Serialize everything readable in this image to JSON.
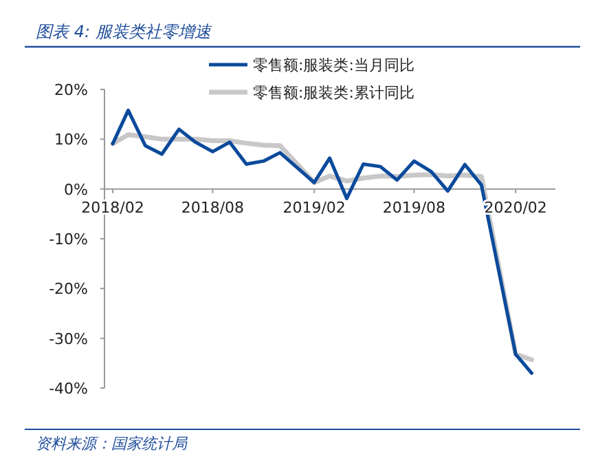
{
  "chart_data": {
    "type": "line",
    "title": "图表 4:  服装类社零增速",
    "x": [
      "2018-02",
      "2018-03",
      "2018-04",
      "2018-05",
      "2018-06",
      "2018-07",
      "2018-08",
      "2018-09",
      "2018-10",
      "2018-11",
      "2018-12",
      "2019-02",
      "2019-03",
      "2019-04",
      "2019-05",
      "2019-06",
      "2019-07",
      "2019-08",
      "2019-09",
      "2019-10",
      "2019-11",
      "2019-12",
      "2020-02",
      "2020-03"
    ],
    "series": [
      {
        "name": "零售额:服装类:累计同比",
        "color": "#c8c8c8",
        "values": [
          9.1,
          10.9,
          10.5,
          10.0,
          10.0,
          10.0,
          9.7,
          9.7,
          9.2,
          8.8,
          8.7,
          1.3,
          2.6,
          1.6,
          2.2,
          2.6,
          2.5,
          2.8,
          2.9,
          2.6,
          2.8,
          2.5,
          -33.2,
          -34.3
        ]
      },
      {
        "name": "零售额:服装类:当月同比",
        "color": "#0b4a9c",
        "values": [
          9.1,
          15.8,
          8.7,
          7.0,
          12.0,
          9.4,
          7.5,
          9.4,
          5.0,
          5.6,
          7.3,
          1.3,
          6.2,
          -1.9,
          5.0,
          4.5,
          1.8,
          5.6,
          3.5,
          -0.4,
          4.9,
          0.8,
          -33.2,
          -37.0
        ]
      }
    ],
    "xlim": [
      "2018-01-17",
      "2020-04-13"
    ],
    "xticks": [
      {
        "value": "2018-02",
        "label": "2018/02"
      },
      {
        "value": "2018-08",
        "label": "2018/08"
      },
      {
        "value": "2019-02",
        "label": "2019/02"
      },
      {
        "value": "2019-08",
        "label": "2019/08"
      },
      {
        "value": "2020-02",
        "label": "2020/02"
      }
    ],
    "ylim": [
      -40,
      20
    ],
    "yticks": [
      {
        "value": 20,
        "label": "20%"
      },
      {
        "value": 10,
        "label": "10%"
      },
      {
        "value": 0,
        "label": "0%"
      },
      {
        "value": -10,
        "label": "-10%"
      },
      {
        "value": -20,
        "label": "-20%"
      },
      {
        "value": -30,
        "label": "-30%"
      },
      {
        "value": -40,
        "label": "-40%"
      }
    ],
    "grid": false,
    "legend": "top",
    "line_style": "solid",
    "marker": "none",
    "annotations": [
      "资料来源：国家统计局"
    ]
  }
}
